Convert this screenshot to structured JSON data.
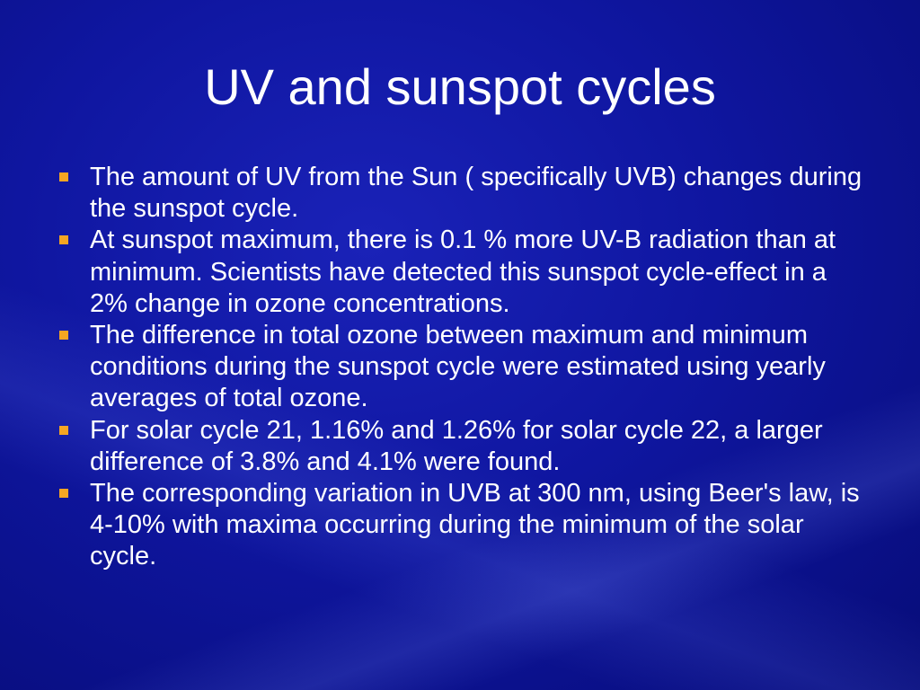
{
  "title": "UV and sunspot cycles",
  "bullets": [
    "The amount of UV from the Sun ( specifically UVB) changes during the sunspot cycle.",
    "At sunspot maximum, there is 0.1 % more UV-B radiation than at minimum. Scientists have detected this sunspot cycle-effect in a 2% change in ozone concentrations.",
    "The difference in total ozone between maximum and minimum conditions during the sunspot cycle were estimated using yearly averages of total ozone.",
    "For solar cycle 21, 1.16% and 1.26% for solar cycle 22, a larger difference of 3.8% and 4.1% were found.",
    "The corresponding variation in UVB at 300 nm, using Beer's law, is 4-10% with maxima occurring during the minimum of the solar cycle."
  ]
}
